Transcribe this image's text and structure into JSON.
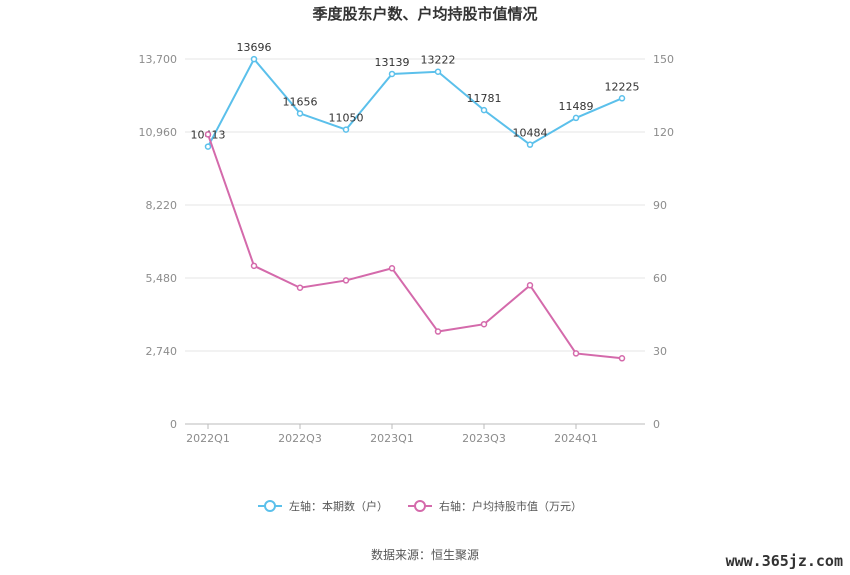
{
  "chart_data": {
    "type": "line",
    "title": "季度股东户数、户均持股市值情况",
    "x": [
      "2022Q1",
      "2022Q2",
      "2022Q3",
      "2022Q4",
      "2023Q1",
      "2023Q2",
      "2023Q3",
      "2023Q4",
      "2024Q1",
      "2024Q2"
    ],
    "x_tick_labels": [
      "2022Q1",
      "2022Q3",
      "2023Q1",
      "2023Q3",
      "2024Q1"
    ],
    "left_axis": {
      "ticks": [
        "0",
        "2,740",
        "5,480",
        "8,220",
        "10,960",
        "13,700"
      ],
      "ylim": [
        0,
        13700
      ]
    },
    "right_axis": {
      "ticks": [
        "0",
        "30",
        "60",
        "90",
        "120",
        "150"
      ],
      "ylim": [
        0,
        150
      ]
    },
    "grid": true,
    "legend_position": "bottom",
    "series": [
      {
        "name": "左轴：本期数（户）",
        "axis": "left",
        "color": "#5bc0eb",
        "values": [
          10413,
          13696,
          11656,
          11050,
          13139,
          13222,
          11781,
          10484,
          11489,
          12225
        ],
        "labels": [
          "10413",
          "13696",
          "11656",
          "11050",
          "13139",
          "13222",
          "11781",
          "10484",
          "11489",
          "12225"
        ]
      },
      {
        "name": "右轴：户均持股市值（万元）",
        "axis": "right",
        "color": "#d46aab",
        "values": [
          119,
          65,
          56,
          59,
          64,
          38,
          41,
          57,
          29,
          27
        ]
      }
    ]
  },
  "footer": {
    "source": "数据来源：恒生聚源"
  },
  "watermark": "www.365jz.com"
}
